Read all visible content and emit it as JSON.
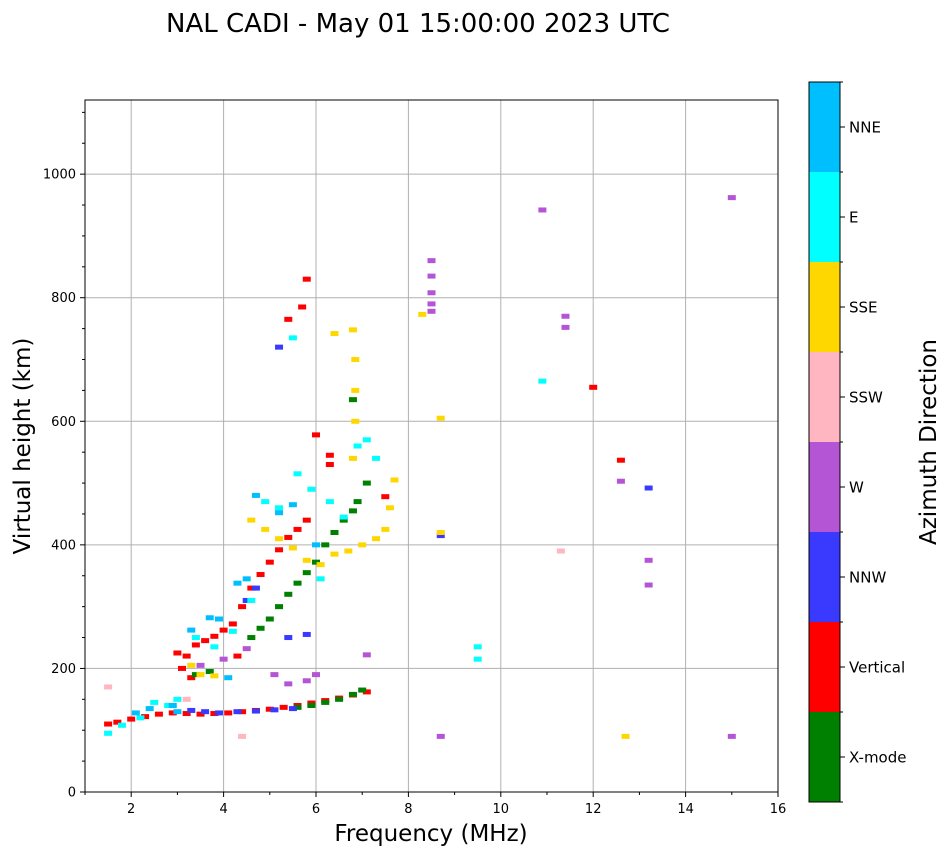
{
  "chart_data": {
    "type": "scatter",
    "title": "NAL CADI - May 01 15:00:00 2023 UTC",
    "xlabel": "Frequency (MHz)",
    "ylabel": "Virtual height (km)",
    "xlim": [
      1,
      16
    ],
    "ylim": [
      0,
      1120
    ],
    "xticks": [
      2,
      4,
      6,
      8,
      10,
      12,
      14,
      16
    ],
    "yticks": [
      0,
      200,
      400,
      600,
      800,
      1000
    ],
    "grid": true,
    "colorbar": {
      "label": "Azimuth Direction",
      "categories": [
        {
          "name": "X-mode",
          "color": "#008000"
        },
        {
          "name": "Vertical",
          "color": "#ff0000"
        },
        {
          "name": "NNW",
          "color": "#3a3aff"
        },
        {
          "name": "W",
          "color": "#b455d6"
        },
        {
          "name": "SSW",
          "color": "#ffb6c1"
        },
        {
          "name": "SSE",
          "color": "#ffd700"
        },
        {
          "name": "E",
          "color": "#00ffff"
        },
        {
          "name": "NNE",
          "color": "#00bfff"
        }
      ]
    },
    "series": [
      {
        "name": "Vertical",
        "points": [
          [
            1.5,
            110
          ],
          [
            1.7,
            113
          ],
          [
            2.0,
            118
          ],
          [
            2.3,
            122
          ],
          [
            2.6,
            126
          ],
          [
            2.9,
            128
          ],
          [
            3.2,
            127
          ],
          [
            3.5,
            126
          ],
          [
            3.8,
            127
          ],
          [
            4.1,
            128
          ],
          [
            4.4,
            130
          ],
          [
            4.7,
            132
          ],
          [
            5.0,
            134
          ],
          [
            5.3,
            137
          ],
          [
            5.6,
            140
          ],
          [
            5.9,
            144
          ],
          [
            6.2,
            148
          ],
          [
            6.5,
            152
          ],
          [
            6.8,
            157
          ],
          [
            7.1,
            162
          ],
          [
            3.0,
            225
          ],
          [
            3.2,
            220
          ],
          [
            3.4,
            238
          ],
          [
            3.6,
            245
          ],
          [
            3.8,
            252
          ],
          [
            4.0,
            262
          ],
          [
            4.2,
            272
          ],
          [
            4.4,
            300
          ],
          [
            4.6,
            330
          ],
          [
            4.8,
            352
          ],
          [
            5.0,
            372
          ],
          [
            5.2,
            392
          ],
          [
            5.4,
            412
          ],
          [
            5.6,
            425
          ],
          [
            5.8,
            440
          ],
          [
            3.1,
            200
          ],
          [
            3.3,
            185
          ],
          [
            4.3,
            220
          ],
          [
            5.4,
            765
          ],
          [
            5.7,
            785
          ],
          [
            5.8,
            830
          ],
          [
            6.0,
            578
          ],
          [
            6.3,
            545
          ],
          [
            6.3,
            530
          ],
          [
            7.5,
            478
          ],
          [
            12.0,
            655
          ],
          [
            12.6,
            537
          ]
        ]
      },
      {
        "name": "X-mode",
        "points": [
          [
            5.6,
            137
          ],
          [
            5.9,
            140
          ],
          [
            6.2,
            145
          ],
          [
            6.5,
            150
          ],
          [
            6.8,
            158
          ],
          [
            7.0,
            165
          ],
          [
            4.6,
            250
          ],
          [
            4.8,
            265
          ],
          [
            5.0,
            280
          ],
          [
            5.2,
            300
          ],
          [
            5.4,
            320
          ],
          [
            5.6,
            338
          ],
          [
            5.8,
            355
          ],
          [
            6.0,
            372
          ],
          [
            6.2,
            400
          ],
          [
            6.4,
            420
          ],
          [
            6.6,
            440
          ],
          [
            6.8,
            455
          ],
          [
            6.9,
            470
          ],
          [
            7.1,
            500
          ],
          [
            6.8,
            635
          ],
          [
            3.4,
            190
          ],
          [
            3.7,
            195
          ]
        ]
      },
      {
        "name": "NNW",
        "points": [
          [
            3.3,
            132
          ],
          [
            3.6,
            130
          ],
          [
            3.9,
            128
          ],
          [
            4.3,
            130
          ],
          [
            4.7,
            131
          ],
          [
            5.1,
            133
          ],
          [
            5.5,
            135
          ],
          [
            5.8,
            255
          ],
          [
            5.4,
            250
          ],
          [
            4.5,
            310
          ],
          [
            4.7,
            330
          ],
          [
            5.2,
            720
          ],
          [
            8.7,
            415
          ],
          [
            13.2,
            492
          ]
        ]
      },
      {
        "name": "W",
        "points": [
          [
            3.5,
            205
          ],
          [
            4.0,
            215
          ],
          [
            4.5,
            232
          ],
          [
            5.1,
            190
          ],
          [
            5.4,
            175
          ],
          [
            5.8,
            180
          ],
          [
            6.0,
            190
          ],
          [
            7.1,
            222
          ],
          [
            8.5,
            860
          ],
          [
            8.5,
            835
          ],
          [
            8.5,
            808
          ],
          [
            8.5,
            790
          ],
          [
            8.5,
            778
          ],
          [
            10.9,
            942
          ],
          [
            11.4,
            770
          ],
          [
            11.4,
            752
          ],
          [
            12.6,
            503
          ],
          [
            13.2,
            375
          ],
          [
            13.2,
            335
          ],
          [
            15.0,
            962
          ],
          [
            8.7,
            90
          ],
          [
            15.0,
            90
          ]
        ]
      },
      {
        "name": "SSW",
        "points": [
          [
            1.5,
            170
          ],
          [
            4.4,
            90
          ],
          [
            11.3,
            390
          ],
          [
            3.2,
            150
          ]
        ]
      },
      {
        "name": "SSE",
        "points": [
          [
            3.5,
            190
          ],
          [
            3.8,
            188
          ],
          [
            4.6,
            440
          ],
          [
            4.9,
            425
          ],
          [
            5.2,
            410
          ],
          [
            5.5,
            395
          ],
          [
            5.8,
            375
          ],
          [
            6.1,
            368
          ],
          [
            6.4,
            385
          ],
          [
            6.7,
            390
          ],
          [
            7.0,
            400
          ],
          [
            7.3,
            410
          ],
          [
            7.5,
            425
          ],
          [
            7.6,
            460
          ],
          [
            7.7,
            505
          ],
          [
            6.8,
            540
          ],
          [
            6.85,
            600
          ],
          [
            6.85,
            650
          ],
          [
            6.85,
            700
          ],
          [
            6.8,
            748
          ],
          [
            6.4,
            742
          ],
          [
            8.3,
            773
          ],
          [
            8.7,
            605
          ],
          [
            8.7,
            420
          ],
          [
            12.7,
            90
          ],
          [
            3.3,
            205
          ]
        ]
      },
      {
        "name": "E",
        "points": [
          [
            1.5,
            95
          ],
          [
            1.8,
            108
          ],
          [
            2.2,
            120
          ],
          [
            2.5,
            145
          ],
          [
            2.8,
            140
          ],
          [
            3.0,
            150
          ],
          [
            3.4,
            250
          ],
          [
            3.8,
            235
          ],
          [
            4.2,
            260
          ],
          [
            4.6,
            310
          ],
          [
            4.9,
            470
          ],
          [
            5.2,
            460
          ],
          [
            5.6,
            515
          ],
          [
            5.9,
            490
          ],
          [
            6.3,
            470
          ],
          [
            6.6,
            445
          ],
          [
            6.9,
            560
          ],
          [
            7.1,
            570
          ],
          [
            7.3,
            540
          ],
          [
            5.5,
            735
          ],
          [
            9.5,
            235
          ],
          [
            9.5,
            215
          ],
          [
            10.9,
            665
          ],
          [
            6.1,
            345
          ]
        ]
      },
      {
        "name": "NNE",
        "points": [
          [
            2.1,
            128
          ],
          [
            2.4,
            135
          ],
          [
            2.9,
            140
          ],
          [
            3.3,
            262
          ],
          [
            3.7,
            282
          ],
          [
            3.9,
            280
          ],
          [
            4.3,
            338
          ],
          [
            4.5,
            345
          ],
          [
            4.7,
            480
          ],
          [
            5.2,
            452
          ],
          [
            5.5,
            465
          ],
          [
            6.0,
            400
          ],
          [
            4.1,
            185
          ],
          [
            3.0,
            130
          ]
        ]
      }
    ]
  }
}
